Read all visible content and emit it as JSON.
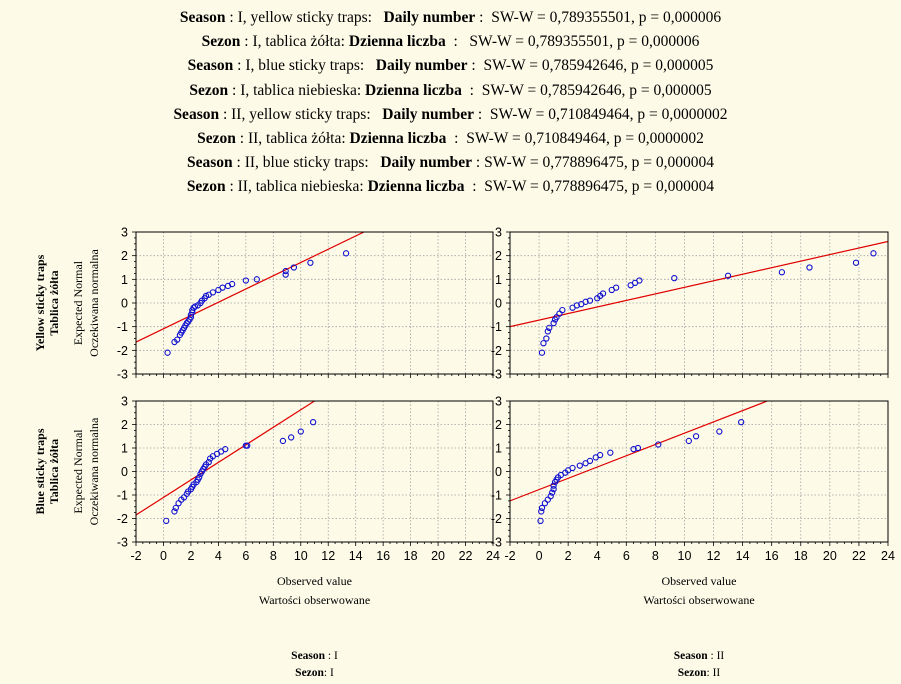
{
  "header_lines": [
    {
      "k1": "Season",
      "mid": " : I, yellow sticky traps:   ",
      "k2": "Daily number",
      "tail": " :  SW-W = 0,789355501, p = 0,000006"
    },
    {
      "k1": "Sezon",
      "mid": " : I, tablica żółta: ",
      "k2": "Dzienna liczba",
      "tail": "  :   SW-W = 0,789355501, p = 0,000006"
    },
    {
      "k1": "Season",
      "mid": " : I, blue sticky traps:   ",
      "k2": "Daily number",
      "tail": " :  SW-W = 0,785942646, p = 0,000005"
    },
    {
      "k1": "Sezon",
      "mid": " : I, tablica niebieska: ",
      "k2": "Dzienna liczba",
      "tail": "  :  SW-W = 0,785942646, p = 0,000005"
    },
    {
      "k1": "Season",
      "mid": " : II, yellow sticky traps:   ",
      "k2": "Daily number",
      "tail": " :  SW-W = 0,710849464, p = 0,0000002"
    },
    {
      "k1": "Sezon",
      "mid": " : II, tablica żółta: ",
      "k2": "Dzienna liczba",
      "tail": "  :  SW-W = 0,710849464, p = 0,0000002"
    },
    {
      "k1": "Season",
      "mid": " : II, blue sticky traps:   ",
      "k2": "Daily number",
      "tail": " : SW-W = 0,778896475, p = 0,000004"
    },
    {
      "k1": "Sezon",
      "mid": " : II, tablica niebieska: ",
      "k2": "Dzienna liczba",
      "tail": "  :  SW-W = 0,778896475, p = 0,000004"
    }
  ],
  "row_labels": [
    [
      "Yellow sticky traps",
      "Tablica żółta"
    ],
    [
      "Blue sticky traps",
      "Tablica żółta"
    ]
  ],
  "y_axis_label": [
    "Expected Normal",
    "Oczekiwana normalna"
  ],
  "x_axis_label": [
    "Observed value",
    "Wartości obserwowane"
  ],
  "column_labels": [
    {
      "k": "Season",
      "v": " : I",
      "k2": "Sezon",
      "v2": ": I"
    },
    {
      "k": "Season",
      "v": " : II",
      "k2": "Sezon",
      "v2": ": II"
    }
  ],
  "colors": {
    "point": "#1010d0",
    "line": "#e00000",
    "grid": "#a0a0a0",
    "background": "#fdfbe8"
  },
  "chart_data": {
    "type": "scatter",
    "subtype": "normal-probability-plot",
    "xlim": [
      -2,
      24
    ],
    "ylim": [
      -3,
      3
    ],
    "x_ticks": [
      -2,
      0,
      2,
      4,
      6,
      8,
      10,
      12,
      14,
      16,
      18,
      20,
      22,
      24
    ],
    "y_ticks": [
      3,
      2,
      1,
      0,
      -1,
      -2,
      -3
    ],
    "grid": true,
    "panels": [
      {
        "row": 0,
        "col": 0,
        "line": [
          [
            -2,
            -1.65
          ],
          [
            14.6,
            3.0
          ]
        ],
        "points": [
          [
            0.3,
            -2.1
          ],
          [
            0.8,
            -1.65
          ],
          [
            1.0,
            -1.55
          ],
          [
            1.2,
            -1.35
          ],
          [
            1.3,
            -1.25
          ],
          [
            1.4,
            -1.15
          ],
          [
            1.5,
            -1.05
          ],
          [
            1.6,
            -0.95
          ],
          [
            1.7,
            -0.85
          ],
          [
            1.8,
            -0.78
          ],
          [
            1.9,
            -0.7
          ],
          [
            2.0,
            -0.6
          ],
          [
            2.0,
            -0.5
          ],
          [
            2.1,
            -0.4
          ],
          [
            2.1,
            -0.3
          ],
          [
            2.2,
            -0.2
          ],
          [
            2.3,
            -0.15
          ],
          [
            2.5,
            -0.1
          ],
          [
            2.7,
            0.0
          ],
          [
            2.8,
            0.1
          ],
          [
            3.0,
            0.2
          ],
          [
            3.1,
            0.3
          ],
          [
            3.3,
            0.35
          ],
          [
            3.6,
            0.45
          ],
          [
            4.0,
            0.55
          ],
          [
            4.3,
            0.65
          ],
          [
            4.7,
            0.72
          ],
          [
            5.0,
            0.8
          ],
          [
            6.0,
            0.95
          ],
          [
            6.8,
            1.0
          ],
          [
            8.9,
            1.2
          ],
          [
            8.9,
            1.35
          ],
          [
            9.5,
            1.5
          ],
          [
            10.7,
            1.7
          ],
          [
            13.3,
            2.1
          ]
        ]
      },
      {
        "row": 0,
        "col": 1,
        "line": [
          [
            -2,
            -1.0
          ],
          [
            24,
            2.6
          ]
        ],
        "points": [
          [
            0.2,
            -2.1
          ],
          [
            0.3,
            -1.7
          ],
          [
            0.5,
            -1.5
          ],
          [
            0.6,
            -1.2
          ],
          [
            0.7,
            -1.05
          ],
          [
            1.0,
            -0.85
          ],
          [
            1.1,
            -0.7
          ],
          [
            1.2,
            -0.6
          ],
          [
            1.4,
            -0.45
          ],
          [
            1.6,
            -0.3
          ],
          [
            2.3,
            -0.2
          ],
          [
            2.6,
            -0.1
          ],
          [
            2.9,
            -0.05
          ],
          [
            3.2,
            0.05
          ],
          [
            3.5,
            0.1
          ],
          [
            4.0,
            0.2
          ],
          [
            4.2,
            0.3
          ],
          [
            4.4,
            0.4
          ],
          [
            5.0,
            0.55
          ],
          [
            5.3,
            0.65
          ],
          [
            6.3,
            0.75
          ],
          [
            6.6,
            0.85
          ],
          [
            6.9,
            0.95
          ],
          [
            9.3,
            1.05
          ],
          [
            13.0,
            1.15
          ],
          [
            16.7,
            1.3
          ],
          [
            18.6,
            1.5
          ],
          [
            21.8,
            1.7
          ],
          [
            23.0,
            2.1
          ]
        ]
      },
      {
        "row": 1,
        "col": 0,
        "line": [
          [
            -2,
            -1.85
          ],
          [
            11.0,
            3.0
          ]
        ],
        "points": [
          [
            0.2,
            -2.1
          ],
          [
            0.8,
            -1.7
          ],
          [
            0.9,
            -1.55
          ],
          [
            1.1,
            -1.35
          ],
          [
            1.3,
            -1.2
          ],
          [
            1.5,
            -1.1
          ],
          [
            1.7,
            -0.95
          ],
          [
            1.8,
            -0.85
          ],
          [
            2.0,
            -0.75
          ],
          [
            2.1,
            -0.65
          ],
          [
            2.2,
            -0.55
          ],
          [
            2.4,
            -0.45
          ],
          [
            2.5,
            -0.35
          ],
          [
            2.6,
            -0.25
          ],
          [
            2.7,
            -0.1
          ],
          [
            2.8,
            0.0
          ],
          [
            2.9,
            0.1
          ],
          [
            3.0,
            0.2
          ],
          [
            3.1,
            0.3
          ],
          [
            3.3,
            0.4
          ],
          [
            3.4,
            0.55
          ],
          [
            3.6,
            0.65
          ],
          [
            3.9,
            0.75
          ],
          [
            4.2,
            0.85
          ],
          [
            4.5,
            0.95
          ],
          [
            6.0,
            1.1
          ],
          [
            6.1,
            1.1
          ],
          [
            8.7,
            1.3
          ],
          [
            9.3,
            1.45
          ],
          [
            10.0,
            1.7
          ],
          [
            10.9,
            2.1
          ]
        ]
      },
      {
        "row": 1,
        "col": 1,
        "line": [
          [
            -2,
            -1.25
          ],
          [
            15.7,
            3.0
          ]
        ],
        "points": [
          [
            0.1,
            -2.1
          ],
          [
            0.15,
            -1.7
          ],
          [
            0.2,
            -1.55
          ],
          [
            0.4,
            -1.35
          ],
          [
            0.6,
            -1.2
          ],
          [
            0.8,
            -1.05
          ],
          [
            0.9,
            -0.9
          ],
          [
            1.0,
            -0.75
          ],
          [
            1.0,
            -0.6
          ],
          [
            1.1,
            -0.45
          ],
          [
            1.2,
            -0.35
          ],
          [
            1.3,
            -0.25
          ],
          [
            1.5,
            -0.15
          ],
          [
            1.8,
            -0.05
          ],
          [
            2.0,
            0.05
          ],
          [
            2.3,
            0.15
          ],
          [
            2.8,
            0.25
          ],
          [
            3.2,
            0.35
          ],
          [
            3.5,
            0.45
          ],
          [
            3.9,
            0.6
          ],
          [
            4.2,
            0.7
          ],
          [
            4.9,
            0.8
          ],
          [
            6.5,
            0.95
          ],
          [
            6.8,
            1.0
          ],
          [
            8.2,
            1.15
          ],
          [
            10.3,
            1.3
          ],
          [
            10.8,
            1.5
          ],
          [
            12.4,
            1.7
          ],
          [
            13.9,
            2.1
          ]
        ]
      }
    ]
  }
}
